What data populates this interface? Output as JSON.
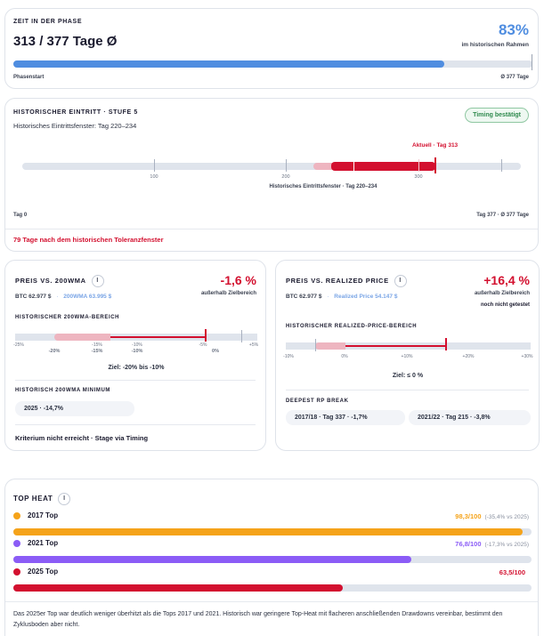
{
  "phase": {
    "title": "ZEIT IN DER PHASE",
    "days": "313 / 377 Tage Ø",
    "percent": "83%",
    "percent_caption": "im historischen Rahmen",
    "progress": 0.83,
    "start_label": "Phasenstart",
    "end_label": "Ø 377 Tage"
  },
  "hist_entry": {
    "title": "HISTORISCHER EINTRITT · STUFE 5",
    "subtitle": "Historisches Eintrittsfenster: Tag 220–234",
    "badge": "Timing bestätigt",
    "current_label": "Aktuell · Tag 313",
    "ticks": [
      "100",
      "200",
      "300"
    ],
    "window_caption": "Historisches Eintrittsfenster · Tag 220–234",
    "left_label": "Tag 0",
    "right_label": "Tag 377 · Ø 377 Tage",
    "warning": "79 Tage nach dem historischen Toleranzfenster",
    "current_day": 313,
    "max_day": 377
  },
  "wma": {
    "title": "PREIS VS. 200WMA",
    "info": "i",
    "value": "-1,6 %",
    "status": "außerhalb Zielbereich",
    "btc": "BTC 62.977 $",
    "sep": "·",
    "wma_price": "200WMA 63.995 $",
    "range_title": "HISTORISCHER 200WMA-BEREICH",
    "ticks_small": [
      "-25%",
      "-15%",
      "-10%",
      "-5%",
      "+5%"
    ],
    "ticks_big": [
      "-20%",
      "-15%",
      "-10%",
      "0%"
    ],
    "goal": "Ziel: -20% bis -10%",
    "min_title": "HISTORISCH 200WMA MINIMUM",
    "min_chip": "2025 · -14,7%",
    "footer": "Kriterium nicht erreicht · Stage via Timing"
  },
  "rp": {
    "title": "PREIS VS. REALIZED PRICE",
    "info": "i",
    "value": "+16,4 %",
    "status": "außerhalb Zielbereich",
    "status2": "noch nicht getestet",
    "btc": "BTC 62.977 $",
    "sep": "·",
    "rp_price": "Realized Price 54.147 $",
    "range_title": "HISTORISCHER REALIZED-PRICE-BEREICH",
    "ticks": [
      "-10%",
      "0%",
      "+10%",
      "+20%",
      "+30%"
    ],
    "goal": "Ziel: ≤ 0 %",
    "break_title": "DEEPEST RP BREAK",
    "chips": [
      "2017/18 · Tag 337 · -1,7%",
      "2021/22 · Tag 215 · -3,8%"
    ]
  },
  "top_heat": {
    "title": "TOP HEAT",
    "info": "i",
    "rows": [
      {
        "label": "2017 Top",
        "value": "98,3/100",
        "delta": "(-35,4% vs 2025)",
        "color": "#f5a31a",
        "fraction": 0.983
      },
      {
        "label": "2021 Top",
        "value": "76,8/100",
        "delta": "(-17,3% vs 2025)",
        "color": "#8b5cf6",
        "fraction": 0.768
      },
      {
        "label": "2025 Top",
        "value": "63,5/100",
        "delta": "",
        "color": "#d3102f",
        "fraction": 0.635
      }
    ],
    "note": "Das 2025er Top war deutlich weniger überhitzt als die Tops 2017 und 2021. Historisch war geringere Top-Heat mit flacheren anschließenden Drawdowns vereinbar, bestimmt den Zyklusboden aber nicht."
  },
  "colors": {
    "blue": "#4f8de0",
    "red": "#d3102f",
    "green": "#2f8a4e",
    "pink": "#eeb5c0"
  }
}
